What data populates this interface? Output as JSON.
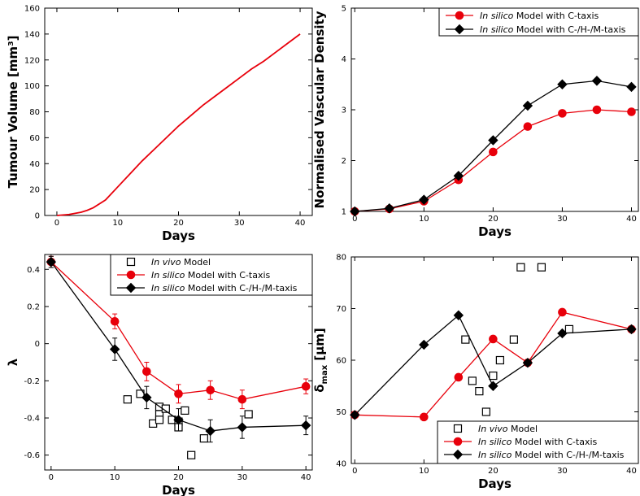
{
  "chart_data": [
    {
      "type": "line",
      "xlabel": "Days",
      "ylabel": "Tumour Volume [mm³]",
      "xlim": [
        -2,
        42
      ],
      "ylim": [
        0,
        160
      ],
      "xticks": [
        "0",
        "10",
        "20",
        "30",
        "40"
      ],
      "yticks": [
        "0",
        "20",
        "40",
        "60",
        "80",
        "100",
        "120",
        "140",
        "160"
      ],
      "grid": false,
      "series": [
        {
          "color": "#e8000b",
          "marker": "none",
          "x": [
            0,
            2,
            4,
            5,
            6,
            8,
            10,
            12,
            14,
            16,
            18,
            20,
            22,
            24,
            26,
            28,
            30,
            32,
            34,
            36,
            38,
            40
          ],
          "y": [
            0,
            0.8,
            2.5,
            4,
            6,
            12,
            22,
            32,
            42,
            51,
            60,
            69,
            77,
            85,
            92,
            99,
            106,
            113,
            119,
            126,
            133,
            140
          ]
        }
      ]
    },
    {
      "type": "line",
      "xlabel": "Days",
      "ylabel": "Normalised Vascular Density",
      "xlim": [
        -0.5,
        41
      ],
      "ylim": [
        1,
        5
      ],
      "xticks": [
        "0",
        "10",
        "20",
        "30",
        "40"
      ],
      "yticks": [
        "1",
        "2",
        "3",
        "4",
        "5"
      ],
      "legend": "top-right",
      "series": [
        {
          "name": "Model with C-taxis",
          "name_prefix": "In silico",
          "color": "#e8000b",
          "marker": "circle",
          "x": [
            0,
            5,
            10,
            15,
            20,
            25,
            30,
            35,
            40
          ],
          "y": [
            1.0,
            1.05,
            1.2,
            1.62,
            2.17,
            2.67,
            2.93,
            3.0,
            2.96
          ]
        },
        {
          "name": "Model with C-/H-/M-taxis",
          "name_prefix": "In silico",
          "color": "#000000",
          "marker": "diamond",
          "x": [
            0,
            5,
            10,
            15,
            20,
            25,
            30,
            35,
            40
          ],
          "y": [
            1.0,
            1.06,
            1.23,
            1.7,
            2.4,
            3.08,
            3.5,
            3.57,
            3.45
          ]
        }
      ]
    },
    {
      "type": "scatter",
      "xlabel": "Days",
      "ylabel": "λ",
      "xlim": [
        -1,
        41
      ],
      "ylim": [
        -0.68,
        0.48
      ],
      "xticks": [
        "0",
        "10",
        "20",
        "30",
        "40"
      ],
      "yticks": [
        "-0.6",
        "-0.4",
        "-0.2",
        "0",
        "0.2",
        "0.4"
      ],
      "legend": "top-right",
      "series": [
        {
          "name": "Model",
          "name_prefix": "In vivo",
          "color": "#000000",
          "marker": "open-square",
          "x": [
            12,
            14,
            16,
            17,
            17,
            17,
            18,
            19,
            20,
            20,
            21,
            22,
            24,
            31
          ],
          "y": [
            -0.3,
            -0.27,
            -0.43,
            -0.34,
            -0.38,
            -0.41,
            -0.35,
            -0.41,
            -0.42,
            -0.45,
            -0.36,
            -0.6,
            -0.51,
            -0.38
          ]
        },
        {
          "name": "Model with C-taxis",
          "name_prefix": "In silico",
          "color": "#e8000b",
          "marker": "circle",
          "x": [
            0,
            10,
            15,
            20,
            25,
            30,
            40
          ],
          "y": [
            0.44,
            0.12,
            -0.15,
            -0.27,
            -0.25,
            -0.3,
            -0.23
          ],
          "err": [
            0.03,
            0.04,
            0.05,
            0.05,
            0.05,
            0.05,
            0.04
          ]
        },
        {
          "name": "Model with C-/H-/M-taxis",
          "name_prefix": "In silico",
          "color": "#000000",
          "marker": "diamond",
          "x": [
            0,
            10,
            15,
            20,
            25,
            30,
            40
          ],
          "y": [
            0.44,
            -0.03,
            -0.29,
            -0.41,
            -0.47,
            -0.45,
            -0.44
          ],
          "err": [
            0.03,
            0.06,
            0.06,
            0.06,
            0.06,
            0.06,
            0.05
          ]
        }
      ]
    },
    {
      "type": "scatter",
      "xlabel": "Days",
      "ylabel_main": "δ",
      "ylabel_sub": "max",
      "ylabel_unit": " [μm]",
      "xlim": [
        -0.5,
        41
      ],
      "ylim": [
        40,
        80
      ],
      "xticks": [
        "0",
        "10",
        "20",
        "30",
        "40"
      ],
      "yticks": [
        "40",
        "50",
        "60",
        "70",
        "80"
      ],
      "legend": "bottom-right",
      "series": [
        {
          "name": "Model",
          "name_prefix": "In vivo",
          "color": "#000000",
          "marker": "open-square",
          "x": [
            16,
            17,
            18,
            19,
            20,
            21,
            23,
            24,
            27,
            31
          ],
          "y": [
            64,
            56,
            54,
            50,
            57,
            60,
            64,
            78,
            78,
            66
          ]
        },
        {
          "name": "Model with C-taxis",
          "name_prefix": "In silico",
          "color": "#e8000b",
          "marker": "circle",
          "x": [
            0,
            10,
            15,
            20,
            25,
            30,
            40
          ],
          "y": [
            49.4,
            49.0,
            56.7,
            64.1,
            59.5,
            69.3,
            66.0
          ]
        },
        {
          "name": "Model with C-/H-/M-taxis",
          "name_prefix": "In silico",
          "color": "#000000",
          "marker": "diamond",
          "x": [
            0,
            10,
            15,
            20,
            25,
            30,
            40
          ],
          "y": [
            49.4,
            63.0,
            68.7,
            55.0,
            59.5,
            65.2,
            66.0
          ]
        }
      ]
    }
  ]
}
